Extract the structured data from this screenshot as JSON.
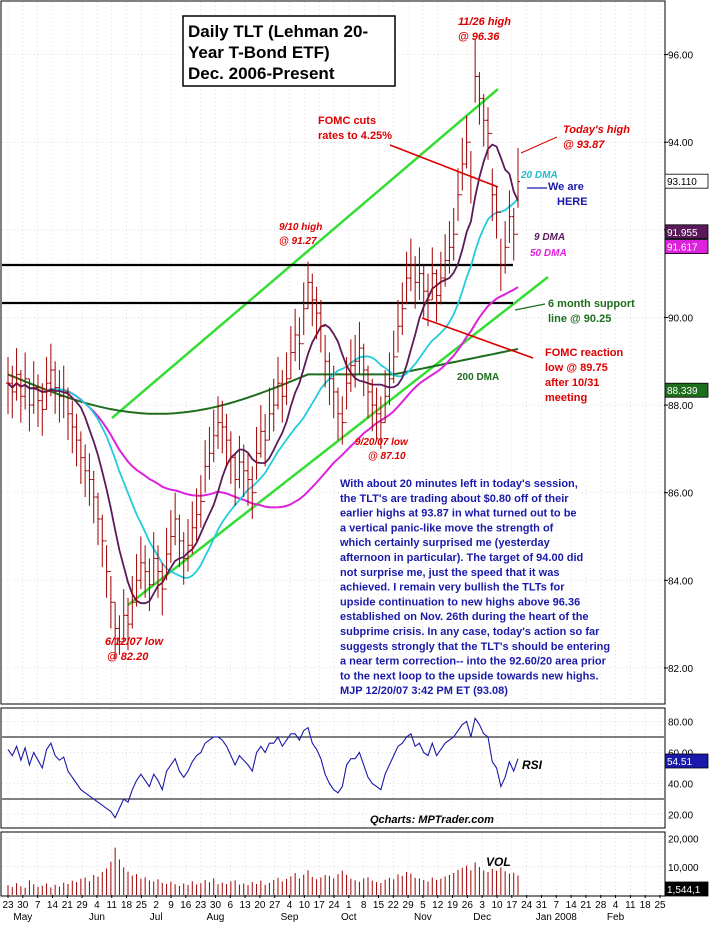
{
  "title": {
    "line1": "Daily TLT (Lehman 20-",
    "line2": "Year T-Bond ETF)",
    "line3": "Dec. 2006-Present"
  },
  "annotations": {
    "high_1126": [
      "11/26 high",
      "@ 96.36"
    ],
    "fomc_cuts": [
      "FOMC cuts",
      "rates to 4.25%"
    ],
    "todays_high": [
      "Today's high",
      "@ 93.87"
    ],
    "we_are_here": [
      "We are",
      "HERE"
    ],
    "high_910": [
      "9/10 high",
      "@ 91.27"
    ],
    "support": [
      "6 month support",
      "line @ 90.25"
    ],
    "fomc_reaction": [
      "FOMC reaction",
      "low @ 89.75",
      "after 10/31",
      "meeting"
    ],
    "low_920": [
      "9/20/07 low",
      "@ 87.10"
    ],
    "low_612": [
      "6/12/07 low",
      "@ 82.20"
    ]
  },
  "ma_labels": {
    "dma20": "20 DMA",
    "dma9": "9 DMA",
    "dma50": "50 DMA",
    "dma200": "200 DMA"
  },
  "commentary": [
    "With about 20 minutes left in today's session,",
    "the TLT's are trading about $0.80 off of their",
    "earlier highs at 93.87 in what turned out to be",
    "a vertical panic-like move the strength of",
    "which certainly surprised me (yesterday",
    "afternoon in particular). The target of 94.00 did",
    "not surprise me, just the speed that it was",
    "achieved. I remain very bullish the TLTs for",
    "upside continuation to new highs above 96.36",
    "established on Nov. 26th during the heart of the",
    "subprime crisis. In any case, today's action so far",
    "suggests strongly that the TLT's should be entering",
    "a near term correction-- into the 92.60/20 area prior",
    "to the next loop to the upside towards new highs.",
    "MJP 12/20/07 3:42 PM ET  (93.08)"
  ],
  "rsi_label": "RSI",
  "vol_label": "VOL",
  "source": "Qcharts: MPTrader.com",
  "value_tags": {
    "last": "93.110",
    "ma9": "91.955",
    "ma50": "91.617",
    "ma200": "88.339",
    "rsi": "54.51",
    "vol": "1,544,1"
  },
  "colors": {
    "price": "#a00000",
    "ma9": "#5a1a5a",
    "ma20": "#22ccdd",
    "ma50": "#dd22dd",
    "ma200": "#1e6e1e",
    "channel": "#33dd33",
    "annotation_red": "#dd0000",
    "rsi_line": "#1a1aaa",
    "volume": "#a00000"
  },
  "chart_data": [
    {
      "type": "candlestick",
      "name": "price",
      "yticks": [
        "96.00",
        "94.00",
        "92.00",
        "90.00",
        "88.00",
        "86.00",
        "84.00",
        "82.00"
      ],
      "ylim": [
        81.2,
        97.2
      ],
      "xticks": [
        "23",
        "30",
        "7",
        "14",
        "21",
        "29",
        "4",
        "11",
        "18",
        "25",
        "2",
        "9",
        "16",
        "23",
        "30",
        "6",
        "13",
        "20",
        "27",
        "4",
        "10",
        "17",
        "24",
        "1",
        "8",
        "15",
        "22",
        "29",
        "5",
        "12",
        "19",
        "26",
        "3",
        "10",
        "17",
        "24",
        "31",
        "7",
        "14",
        "21",
        "28",
        "4",
        "11",
        "18",
        "25"
      ],
      "month_labels": [
        {
          "label": "May",
          "at": 1
        },
        {
          "label": "Jun",
          "at": 6
        },
        {
          "label": "Jul",
          "at": 10
        },
        {
          "label": "Aug",
          "at": 14
        },
        {
          "label": "Sep",
          "at": 19
        },
        {
          "label": "Oct",
          "at": 23
        },
        {
          "label": "Nov",
          "at": 28
        },
        {
          "label": "Dec",
          "at": 32
        },
        {
          "label": "Jan 2008",
          "at": 37
        },
        {
          "label": "Feb",
          "at": 41
        }
      ],
      "close": [
        88.5,
        88.3,
        88.7,
        88.2,
        88.6,
        88.0,
        88.4,
        88.1,
        87.9,
        88.5,
        88.8,
        88.4,
        88.2,
        88.3,
        87.8,
        87.5,
        87.2,
        86.8,
        86.5,
        86.3,
        85.9,
        85.4,
        84.9,
        84.2,
        83.5,
        82.9,
        82.6,
        83.2,
        83.0,
        83.5,
        84.0,
        84.4,
        84.2,
        83.9,
        84.5,
        84.2,
        83.8,
        84.6,
        85.0,
        85.4,
        84.9,
        84.5,
        84.8,
        85.2,
        85.5,
        85.8,
        86.6,
        86.9,
        87.3,
        87.6,
        87.5,
        87.2,
        86.8,
        86.3,
        86.7,
        86.5,
        86.3,
        86.0,
        86.9,
        87.4,
        87.2,
        87.8,
        88.0,
        88.5,
        88.2,
        88.6,
        89.2,
        89.6,
        89.4,
        90.2,
        90.8,
        90.4,
        90.1,
        89.8,
        89.0,
        88.6,
        88.3,
        87.8,
        87.6,
        88.5,
        88.9,
        89.0,
        89.3,
        88.8,
        88.3,
        88.0,
        87.8,
        87.6,
        88.2,
        88.6,
        89.1,
        89.8,
        90.2,
        90.9,
        91.2,
        90.8,
        91.0,
        90.6,
        90.4,
        91.0,
        90.5,
        90.9,
        91.3,
        91.6,
        91.9,
        92.8,
        93.5,
        94.0,
        93.2,
        95.5,
        95.0,
        94.5,
        94.2,
        92.8,
        92.4,
        91.2,
        91.6,
        92.3,
        91.9,
        93.1
      ],
      "low": [
        87.8,
        87.7,
        88.1,
        87.6,
        87.9,
        87.4,
        87.8,
        87.5,
        87.3,
        87.9,
        88.2,
        87.8,
        87.6,
        87.7,
        87.2,
        86.9,
        86.6,
        86.2,
        85.9,
        85.7,
        85.3,
        84.8,
        84.3,
        83.6,
        82.9,
        82.2,
        82.3,
        82.6,
        82.4,
        82.9,
        83.4,
        83.8,
        83.6,
        83.3,
        83.9,
        83.6,
        83.2,
        84.0,
        84.4,
        84.8,
        84.3,
        83.9,
        84.2,
        84.6,
        84.9,
        85.2,
        86.0,
        86.3,
        86.7,
        87.0,
        86.9,
        86.6,
        86.2,
        85.7,
        86.1,
        85.9,
        85.7,
        85.4,
        86.3,
        86.8,
        86.6,
        87.2,
        87.4,
        87.9,
        87.6,
        88.0,
        88.6,
        89.0,
        88.8,
        89.6,
        90.2,
        89.8,
        89.5,
        89.2,
        88.4,
        88.0,
        87.7,
        87.2,
        87.1,
        87.9,
        88.3,
        88.4,
        88.7,
        88.2,
        87.7,
        87.4,
        87.2,
        87.0,
        87.6,
        88.0,
        88.5,
        89.2,
        89.6,
        90.3,
        90.6,
        90.2,
        90.4,
        90.0,
        89.8,
        90.4,
        89.9,
        90.3,
        90.7,
        91.0,
        91.3,
        92.2,
        92.9,
        93.4,
        92.6,
        94.9,
        94.4,
        93.9,
        93.6,
        92.2,
        91.8,
        90.6,
        91.0,
        91.7,
        91.3,
        92.5
      ],
      "high": [
        89.1,
        88.9,
        89.3,
        88.8,
        89.2,
        88.6,
        89.0,
        88.7,
        88.5,
        89.1,
        89.4,
        89.0,
        88.8,
        88.9,
        88.4,
        88.1,
        87.8,
        87.4,
        87.1,
        86.9,
        86.5,
        86.0,
        85.5,
        84.8,
        84.1,
        83.5,
        83.2,
        83.8,
        83.6,
        84.1,
        84.6,
        85.0,
        84.8,
        84.5,
        85.1,
        84.8,
        84.4,
        85.2,
        85.6,
        86.0,
        85.5,
        85.1,
        85.4,
        85.8,
        86.1,
        86.4,
        87.2,
        87.5,
        87.9,
        88.2,
        88.1,
        87.8,
        87.4,
        86.9,
        87.3,
        87.1,
        86.9,
        86.6,
        87.5,
        88.0,
        87.8,
        88.4,
        88.6,
        89.1,
        88.8,
        89.2,
        89.8,
        90.2,
        90.0,
        90.8,
        91.27,
        91.0,
        90.7,
        90.4,
        89.6,
        89.2,
        88.9,
        88.4,
        88.2,
        89.1,
        89.5,
        89.6,
        89.9,
        89.4,
        88.9,
        88.6,
        88.4,
        88.2,
        88.8,
        89.2,
        89.7,
        90.4,
        90.8,
        91.5,
        91.8,
        91.4,
        91.6,
        91.2,
        91.0,
        91.6,
        91.1,
        91.5,
        91.9,
        92.2,
        92.5,
        93.4,
        94.1,
        94.6,
        93.8,
        96.36,
        95.6,
        95.1,
        94.8,
        93.4,
        93.0,
        91.8,
        92.2,
        92.9,
        92.5,
        93.87
      ]
    },
    {
      "type": "line",
      "name": "RSI",
      "yticks": [
        "80.00",
        "60.00",
        "40.00",
        "20.00"
      ],
      "ylim": [
        12,
        88
      ],
      "guides": [
        70,
        30
      ],
      "values": [
        62,
        58,
        64,
        55,
        63,
        52,
        60,
        55,
        50,
        62,
        66,
        58,
        55,
        57,
        48,
        44,
        40,
        36,
        34,
        32,
        30,
        28,
        26,
        24,
        22,
        18,
        24,
        30,
        28,
        36,
        42,
        46,
        42,
        38,
        46,
        42,
        36,
        48,
        52,
        56,
        48,
        44,
        48,
        54,
        58,
        60,
        66,
        68,
        70,
        70,
        68,
        64,
        58,
        52,
        58,
        55,
        52,
        48,
        60,
        64,
        60,
        66,
        66,
        70,
        64,
        68,
        72,
        72,
        68,
        74,
        76,
        66,
        62,
        56,
        46,
        40,
        36,
        34,
        38,
        52,
        56,
        56,
        60,
        52,
        44,
        40,
        38,
        36,
        46,
        52,
        58,
        64,
        66,
        70,
        72,
        64,
        66,
        60,
        58,
        66,
        58,
        62,
        66,
        68,
        70,
        74,
        78,
        80,
        70,
        82,
        78,
        72,
        70,
        54,
        50,
        38,
        44,
        54,
        48,
        56
      ]
    },
    {
      "type": "bar",
      "name": "VOL",
      "yticks": [
        "20,000",
        "10,000"
      ],
      "ylim": [
        0,
        22000
      ],
      "values": [
        3500,
        2800,
        4200,
        3100,
        2600,
        5200,
        3800,
        2900,
        3300,
        4100,
        2700,
        3600,
        3000,
        4400,
        3900,
        5100,
        4600,
        5800,
        6200,
        4900,
        7100,
        6500,
        8200,
        9400,
        11800,
        16800,
        12600,
        9800,
        8300,
        6900,
        7400,
        5800,
        6300,
        5200,
        4800,
        5600,
        4300,
        3900,
        4700,
        3800,
        3200,
        4100,
        3600,
        4900,
        3700,
        4200,
        5300,
        4600,
        5900,
        3800,
        4400,
        3900,
        4800,
        5200,
        3700,
        4100,
        3500,
        4600,
        3900,
        5100,
        3600,
        4300,
        5400,
        6100,
        4800,
        5700,
        6600,
        7800,
        5900,
        7200,
        8800,
        6400,
        5600,
        6200,
        7100,
        6800,
        5900,
        7400,
        8600,
        7100,
        5800,
        5200,
        4700,
        5900,
        6300,
        5100,
        4600,
        4200,
        5400,
        6100,
        5600,
        7300,
        6800,
        8200,
        7600,
        6100,
        5900,
        5300,
        4800,
        6200,
        5400,
        5800,
        6600,
        7100,
        7800,
        8900,
        9600,
        10400,
        8800,
        11600,
        9900,
        8700,
        8100,
        9300,
        8600,
        9800,
        8400,
        7600,
        7900,
        6900
      ]
    }
  ]
}
